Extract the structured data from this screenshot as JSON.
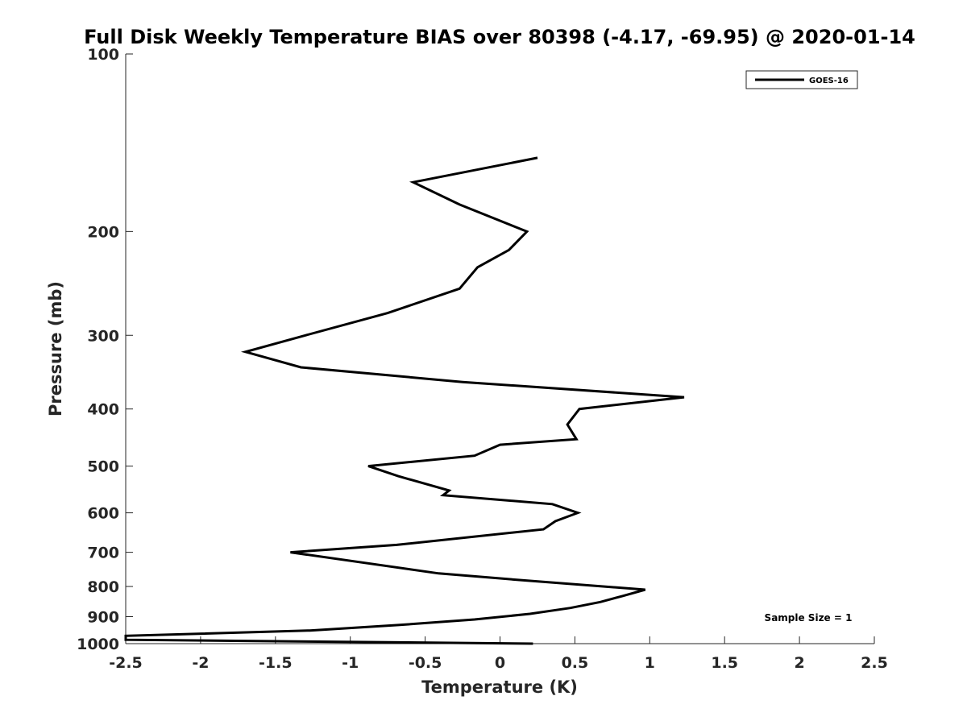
{
  "chart_data": {
    "type": "line",
    "title": "Full Disk Weekly Temperature BIAS over 80398 (-4.17, -69.95) @ 2020-01-14",
    "xlabel": "Temperature (K)",
    "ylabel": "Pressure (mb)",
    "xlim": [
      -2.5,
      2.5
    ],
    "ylim": [
      100,
      1000
    ],
    "yscale": "log",
    "yreversed": true,
    "xticks": [
      -2.5,
      -2,
      -1.5,
      -1,
      -0.5,
      0,
      0.5,
      1,
      1.5,
      2,
      2.5
    ],
    "xtick_labels": [
      "-2.5",
      "-2",
      "-1.5",
      "-1",
      "-0.5",
      "0",
      "0.5",
      "1",
      "1.5",
      "2",
      "2.5"
    ],
    "yticks": [
      100,
      200,
      300,
      400,
      500,
      600,
      700,
      800,
      900,
      1000
    ],
    "ytick_labels": [
      "100",
      "200",
      "300",
      "400",
      "500",
      "600",
      "700",
      "800",
      "900",
      "1000"
    ],
    "grid": false,
    "legend_position": "top-right",
    "series": [
      {
        "name": "GOES-16",
        "color": "#000000",
        "points": [
          {
            "x": 0.25,
            "p": 150
          },
          {
            "x": -0.58,
            "p": 165
          },
          {
            "x": -0.27,
            "p": 180
          },
          {
            "x": 0.18,
            "p": 200
          },
          {
            "x": 0.06,
            "p": 215
          },
          {
            "x": -0.15,
            "p": 230
          },
          {
            "x": -0.27,
            "p": 250
          },
          {
            "x": -0.75,
            "p": 275
          },
          {
            "x": -1.3,
            "p": 300
          },
          {
            "x": -1.7,
            "p": 320
          },
          {
            "x": -1.33,
            "p": 340
          },
          {
            "x": -0.25,
            "p": 360
          },
          {
            "x": 1.23,
            "p": 382
          },
          {
            "x": 0.53,
            "p": 400
          },
          {
            "x": 0.45,
            "p": 425
          },
          {
            "x": 0.51,
            "p": 450
          },
          {
            "x": 0.0,
            "p": 460
          },
          {
            "x": -0.17,
            "p": 480
          },
          {
            "x": -0.88,
            "p": 500
          },
          {
            "x": -0.68,
            "p": 520
          },
          {
            "x": -0.34,
            "p": 550
          },
          {
            "x": -0.38,
            "p": 560
          },
          {
            "x": 0.35,
            "p": 580
          },
          {
            "x": 0.52,
            "p": 600
          },
          {
            "x": 0.37,
            "p": 620
          },
          {
            "x": 0.29,
            "p": 640
          },
          {
            "x": -0.69,
            "p": 680
          },
          {
            "x": -1.4,
            "p": 700
          },
          {
            "x": -0.41,
            "p": 760
          },
          {
            "x": 0.13,
            "p": 780
          },
          {
            "x": 0.97,
            "p": 810
          },
          {
            "x": 0.82,
            "p": 830
          },
          {
            "x": 0.67,
            "p": 850
          },
          {
            "x": 0.47,
            "p": 870
          },
          {
            "x": 0.2,
            "p": 890
          },
          {
            "x": -0.17,
            "p": 910
          },
          {
            "x": -0.68,
            "p": 930
          },
          {
            "x": -1.27,
            "p": 950
          },
          {
            "x": -2.5,
            "p": 970
          },
          {
            "x": -2.5,
            "p": 985
          },
          {
            "x": 0.22,
            "p": 1000
          }
        ]
      }
    ],
    "annotation": "Sample Size = 1"
  }
}
